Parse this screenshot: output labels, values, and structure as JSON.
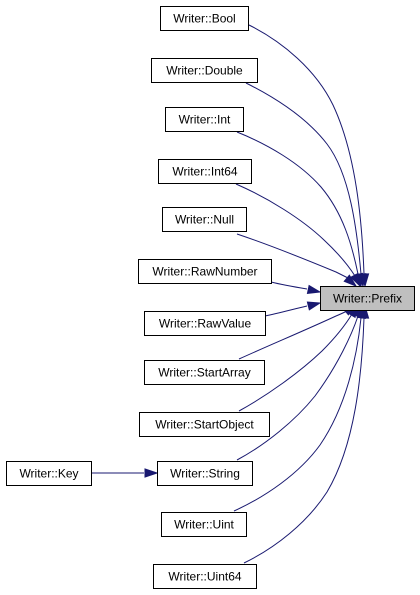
{
  "diagram": {
    "type": "call-graph",
    "target": "Writer::Prefix",
    "nodes": [
      {
        "id": "bool",
        "label": "Writer::Bool"
      },
      {
        "id": "double",
        "label": "Writer::Double"
      },
      {
        "id": "int",
        "label": "Writer::Int"
      },
      {
        "id": "int64",
        "label": "Writer::Int64"
      },
      {
        "id": "null",
        "label": "Writer::Null"
      },
      {
        "id": "rawnumber",
        "label": "Writer::RawNumber"
      },
      {
        "id": "rawvalue",
        "label": "Writer::RawValue"
      },
      {
        "id": "startarray",
        "label": "Writer::StartArray"
      },
      {
        "id": "startobject",
        "label": "Writer::StartObject"
      },
      {
        "id": "string",
        "label": "Writer::String"
      },
      {
        "id": "uint",
        "label": "Writer::Uint"
      },
      {
        "id": "uint64",
        "label": "Writer::Uint64"
      },
      {
        "id": "key",
        "label": "Writer::Key"
      },
      {
        "id": "prefix",
        "label": "Writer::Prefix",
        "highlighted": true
      }
    ],
    "edges": [
      {
        "from": "bool",
        "to": "prefix"
      },
      {
        "from": "double",
        "to": "prefix"
      },
      {
        "from": "int",
        "to": "prefix"
      },
      {
        "from": "int64",
        "to": "prefix"
      },
      {
        "from": "null",
        "to": "prefix"
      },
      {
        "from": "rawnumber",
        "to": "prefix"
      },
      {
        "from": "rawvalue",
        "to": "prefix"
      },
      {
        "from": "startarray",
        "to": "prefix"
      },
      {
        "from": "startobject",
        "to": "prefix"
      },
      {
        "from": "string",
        "to": "prefix"
      },
      {
        "from": "uint",
        "to": "prefix"
      },
      {
        "from": "uint64",
        "to": "prefix"
      },
      {
        "from": "key",
        "to": "string"
      }
    ],
    "colors": {
      "edge": "#191970",
      "node_border": "#000000",
      "node_fill": "#ffffff",
      "highlight_fill": "#bfbfbf"
    }
  }
}
